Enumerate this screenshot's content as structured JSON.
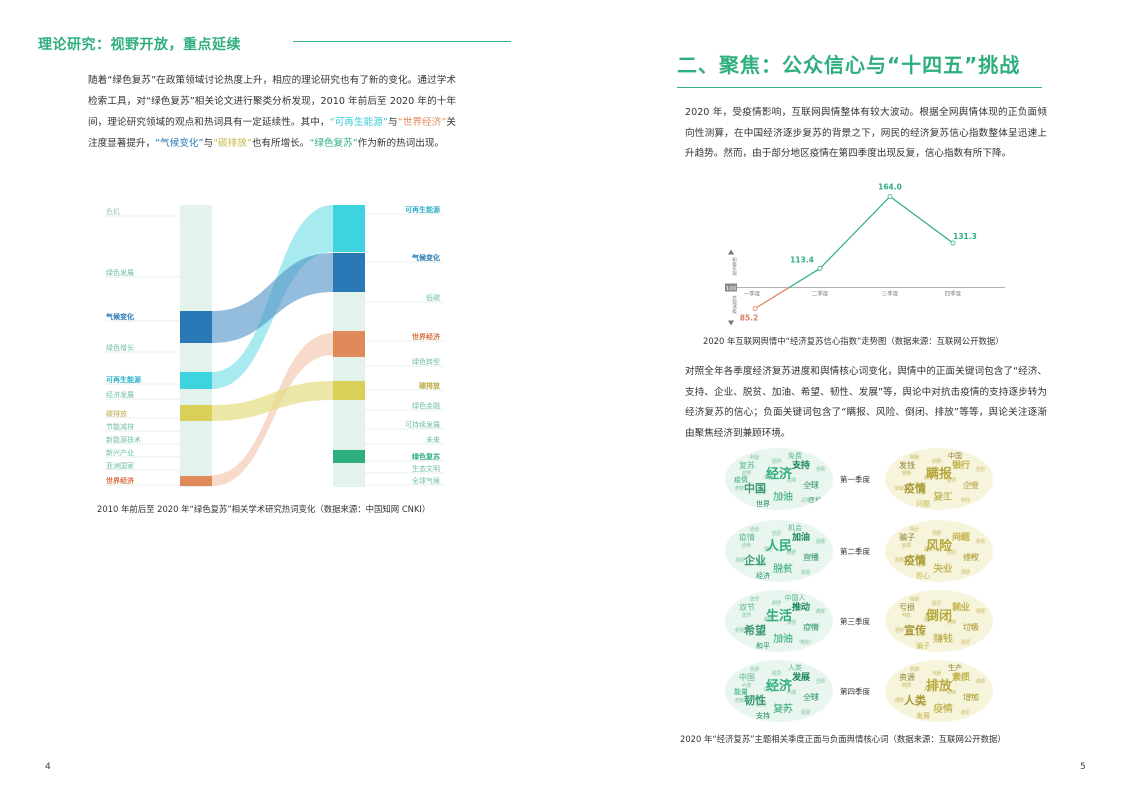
{
  "left_page": {
    "section_title": "理论研究：视野开放，重点延续",
    "paragraph": [
      {
        "t": "随着“绿色复苏”在政策领域讨论热度上升，相应的理论研究也有了新的变化。通过学术检索工具，对“绿色复苏”相关论文进行聚类分析发现，2010 年前后至 2020 年的十年间，理论研究领域的观点和热词具有一定延续性。其中，",
        "c": ""
      },
      {
        "t": "“可再生能源”",
        "c": "hl-teal"
      },
      {
        "t": "与",
        "c": ""
      },
      {
        "t": "“世界经济”",
        "c": "hl-orange"
      },
      {
        "t": "关注度显著提升，",
        "c": ""
      },
      {
        "t": "“气候变化”",
        "c": "hl-blue"
      },
      {
        "t": "与",
        "c": ""
      },
      {
        "t": "“碳排放”",
        "c": "hl-yellow"
      },
      {
        "t": "也有所增长。",
        "c": ""
      },
      {
        "t": "“绿色复苏”",
        "c": "hl-green"
      },
      {
        "t": "作为新的热词出现。",
        "c": ""
      }
    ],
    "sankey": {
      "left_terms": [
        "危机",
        "绿色发展",
        "气候变化",
        "绿色增长",
        "可再生能源",
        "经济发展",
        "碳排放",
        "节能减排",
        "新能源技术",
        "新兴产业",
        "亚洲国家",
        "世界经济"
      ],
      "right_terms": [
        "可再生能源",
        "气候变化",
        "低碳",
        "世界经济",
        "绿色转型",
        "碳排放",
        "绿色金融",
        "可持续发展",
        "未来",
        "绿色复苏",
        "生态文明",
        "全球气候"
      ],
      "colors": {
        "renewable": "#3dd3df",
        "climate": "#2a78b5",
        "world_economy": "#e08a5a",
        "carbon": "#d9d05a",
        "green_recovery": "#2fae7e",
        "neutral": "#e4f2ec"
      }
    },
    "caption": "2010 年前后至 2020 年“绿色复苏”相关学术研究热词变化（数据来源：中国知网 CNKI）",
    "page_number": "4"
  },
  "right_page": {
    "section_title": "二、聚焦：公众信心与“十四五”挑战",
    "paragraph1": "2020 年，受疫情影响，互联网舆情整体有较大波动。根据全网舆情体现的正负面倾向性测算，在中国经济逐步复苏的背景之下，网民的经济复苏信心指数整体呈迅速上升趋势。然而，由于部分地区疫情在第四季度出现反复，信心指数有所下降。",
    "chart_caption": "2020 年互联网舆情中“经济复苏信心指数”走势图（数据来源：互联网公开数据）",
    "paragraph2": "对照全年各季度经济复苏进度和舆情核心词变化，舆情中的正面关键词包含了“经济、支持、企业、脱贫、加油、希望、韧性、发展”等，舆论中对抗击疫情的支持逐步转为经济复苏的信心；负面关键词包含了“瞒报、风险、倒闭、排放”等等，舆论关注逐渐由聚焦经济到兼顾环境。",
    "wordclouds": [
      {
        "quarter": "第一季度",
        "positive": [
          "经济",
          "中国",
          "支持",
          "复苏",
          "加油",
          "全球",
          "世界",
          "免费",
          "疫情",
          "医护"
        ],
        "negative": [
          "瞒报",
          "疫情",
          "银行",
          "发钱",
          "复工",
          "企业",
          "问题",
          "中国"
        ]
      },
      {
        "quarter": "第二季度",
        "positive": [
          "人民",
          "企业",
          "加油",
          "疫情",
          "脱贫",
          "直播",
          "经济",
          "机会"
        ],
        "negative": [
          "风险",
          "疫情",
          "问题",
          "骗子",
          "失业",
          "维权",
          "担心"
        ]
      },
      {
        "quarter": "第三季度",
        "positive": [
          "生活",
          "希望",
          "推动",
          "双节",
          "加油",
          "疫情",
          "和平",
          "中国人"
        ],
        "negative": [
          "倒闭",
          "宣传",
          "就业",
          "亏损",
          "赚钱",
          "垃圾",
          "骗子"
        ]
      },
      {
        "quarter": "第四季度",
        "positive": [
          "经济",
          "韧性",
          "发展",
          "中国",
          "复苏",
          "全球",
          "支持",
          "人类",
          "能量"
        ],
        "negative": [
          "排放",
          "人类",
          "素质",
          "资源",
          "疫情",
          "增加",
          "发展",
          "生产"
        ]
      }
    ],
    "caption": "2020 年“经济复苏”主题相关季度正面与负面舆情核心词（数据来源：互联网公开数据）",
    "page_number": "5"
  },
  "chart_data": {
    "type": "line",
    "categories": [
      "一季度",
      "二季度",
      "三季度",
      "四季度"
    ],
    "values": [
      85.2,
      113.4,
      164.0,
      131.3
    ],
    "value_labels": [
      "85.2",
      "113.4",
      "164.0",
      "131.3"
    ],
    "baseline": 100,
    "baseline_label": "100",
    "y_axis_top_label": "积极乐观",
    "y_axis_bottom_label": "悲观消极",
    "colors": {
      "above": "#2fae7e",
      "below": "#e07a5a"
    }
  }
}
